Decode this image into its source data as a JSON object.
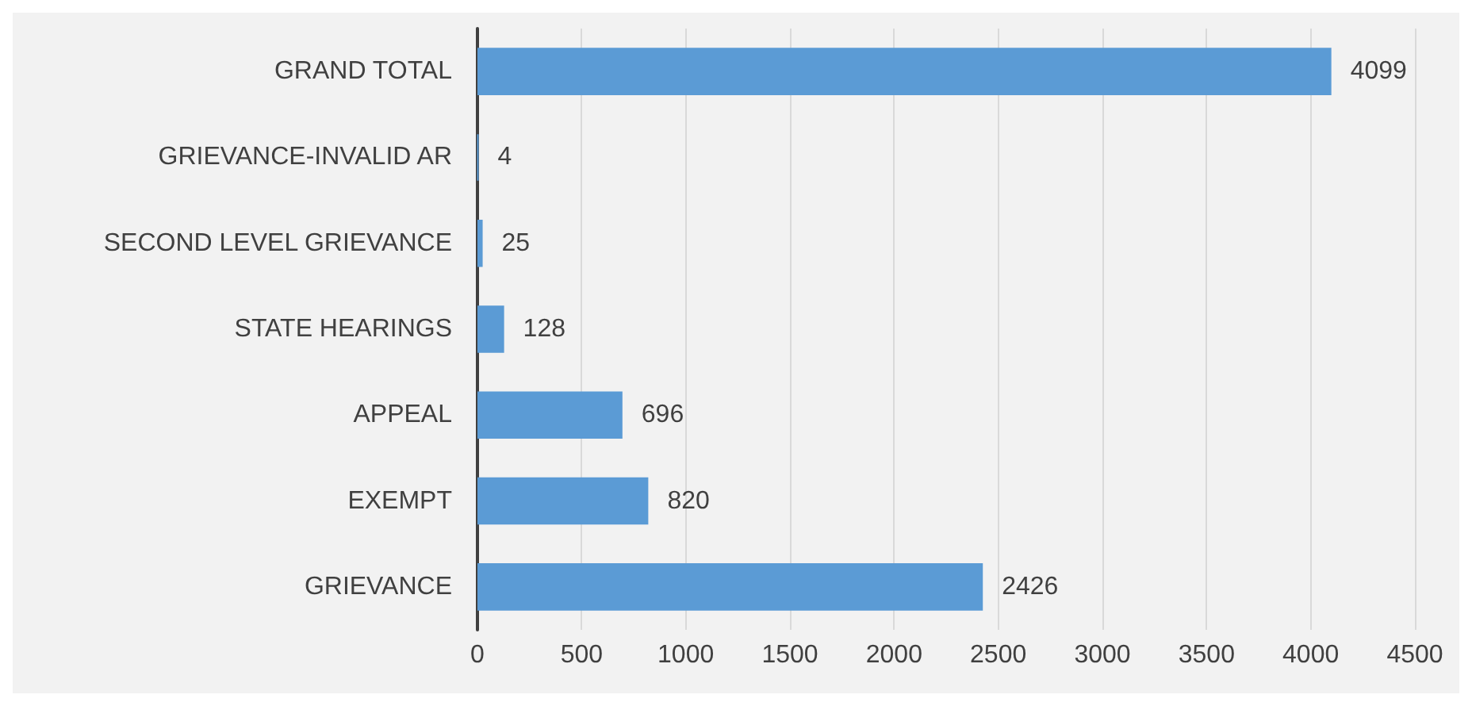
{
  "chart_data": {
    "type": "bar",
    "orientation": "horizontal",
    "categories": [
      "GRAND TOTAL",
      "GRIEVANCE-INVALID AR",
      "SECOND LEVEL GRIEVANCE",
      "STATE HEARINGS",
      "APPEAL",
      "EXEMPT",
      "GRIEVANCE"
    ],
    "values": [
      4099,
      4,
      25,
      128,
      696,
      820,
      2426
    ],
    "color": "#5b9bd5",
    "xlim": [
      0,
      4500
    ],
    "xticks": [
      0,
      500,
      1000,
      1500,
      2000,
      2500,
      3000,
      3500,
      4000,
      4500
    ],
    "grid": "x",
    "data_labels": true
  }
}
